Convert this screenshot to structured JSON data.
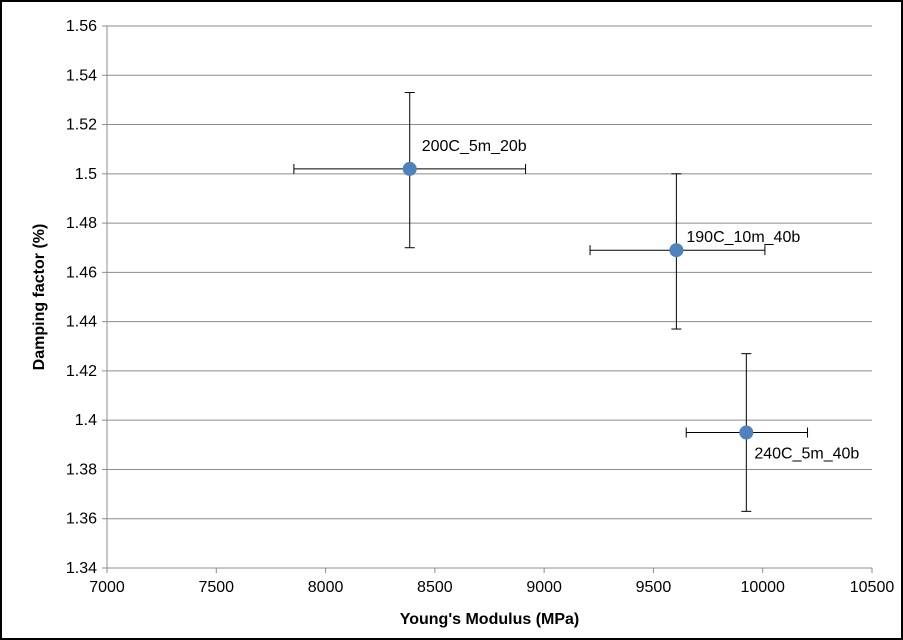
{
  "chart_data": {
    "type": "scatter",
    "xlabel": "Young's Modulus (MPa)",
    "ylabel": "Damping factor (%)",
    "xlim": [
      7000,
      10500
    ],
    "ylim": [
      1.34,
      1.56
    ],
    "x_ticks": [
      7000,
      7500,
      8000,
      8500,
      9000,
      9500,
      10000,
      10500
    ],
    "y_ticks": [
      1.34,
      1.36,
      1.38,
      1.4,
      1.42,
      1.44,
      1.46,
      1.48,
      1.5,
      1.52,
      1.54,
      1.56
    ],
    "x_tick_labels": [
      "7000",
      "7500",
      "8000",
      "8500",
      "9000",
      "9500",
      "10000",
      "10500"
    ],
    "y_tick_labels": [
      "1.34",
      "1.36",
      "1.38",
      "1.4",
      "1.42",
      "1.44",
      "1.46",
      "1.48",
      "1.5",
      "1.52",
      "1.54",
      "1.56"
    ],
    "grid": "horizontal",
    "marker_color": "#4F81BD",
    "points": [
      {
        "label": "200C_5m_20b",
        "x": 8385,
        "y": 1.502,
        "x_err": [
          7855,
          8915
        ],
        "y_err": [
          1.47,
          1.533
        ]
      },
      {
        "label": "190C_10m_40b",
        "x": 9605,
        "y": 1.469,
        "x_err": [
          9210,
          10010
        ],
        "y_err": [
          1.437,
          1.5
        ]
      },
      {
        "label": "240C_5m_40b",
        "x": 9925,
        "y": 1.395,
        "x_err": [
          9650,
          10205
        ],
        "y_err": [
          1.363,
          1.427
        ]
      }
    ]
  }
}
